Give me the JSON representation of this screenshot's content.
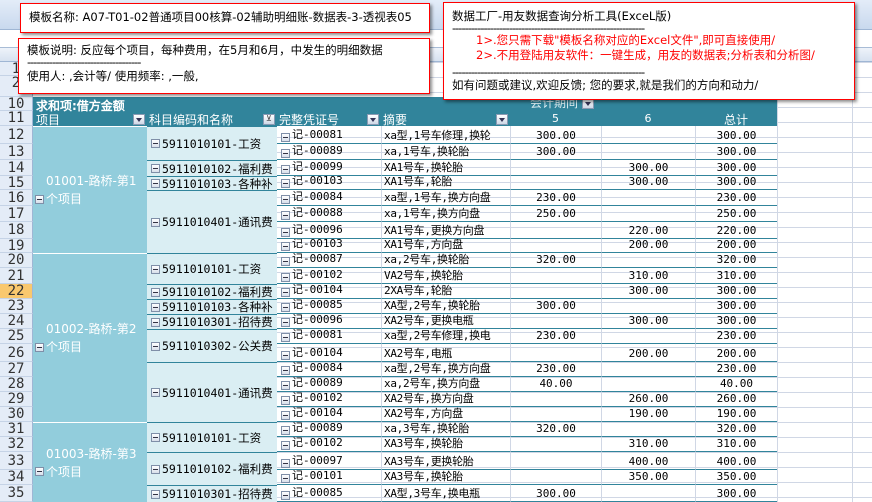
{
  "textboxes": {
    "template_name": "模板名称:   A07-T01-02普通项目00核算-02辅助明细账-数据表-3-透视表05",
    "description": "模板说明: 反应每个项目，每种费用，在5月和6月，中发生的明细数据",
    "separator_short": "------------------------------------",
    "usage": "使用人: ,会计等/      使用频率: ,一般,",
    "tool_title": "数据工厂-用友数据查询分析工具(ExceL版)",
    "separator_long": "-------------------------------------------------------------",
    "point1": "1>.您只需下载\"模板名称对应的Excel文件\",即可直接使用/",
    "point2": "2>.不用登陆用友软件：一键生成，用友的数据表;分析表和分析图/",
    "feedback": "如有问题或建议,欢迎反馈; 您的要求,就是我们的方向和动力/"
  },
  "pivot": {
    "data_field": "求和项:借方金额",
    "column_field": "会计期间",
    "headers": {
      "project": "项目",
      "subject": "科目编码和名称",
      "voucher": "完整凭证号",
      "summary": "摘要",
      "p5": "5",
      "p6": "6",
      "total": "总计"
    },
    "header_row_numbers": [
      "10",
      "11"
    ],
    "active_row": "22",
    "colors": {
      "header": "#31849b",
      "project_bg": "#92cddc",
      "subject_bg": "#daeef3",
      "active_row": "#f9c86e"
    },
    "projects": [
      {
        "name": "01001-路桥-第1个项目",
        "rows": 8
      },
      {
        "name": "01002-路桥-第2个项目",
        "rows": 11
      },
      {
        "name": "01003-路桥-第3个项目",
        "rows": 5
      }
    ],
    "subjects": [
      {
        "name": "5911010101-工资",
        "rows": 2
      },
      {
        "name": "5911010102-福利费",
        "rows": 1
      },
      {
        "name": "5911010103-各种补",
        "rows": 1
      },
      {
        "name": "5911010401-通讯费",
        "rows": 4
      },
      {
        "name": "5911010101-工资",
        "rows": 2
      },
      {
        "name": "5911010102-福利费",
        "rows": 1
      },
      {
        "name": "5911010103-各种补",
        "rows": 1
      },
      {
        "name": "5911010301-招待费",
        "rows": 1
      },
      {
        "name": "5911010302-公关费",
        "rows": 2
      },
      {
        "name": "5911010401-通讯费",
        "rows": 4
      },
      {
        "name": "5911010101-工资",
        "rows": 2
      },
      {
        "name": "5911010102-福利费",
        "rows": 2
      },
      {
        "name": "5911010301-招待费",
        "rows": 1
      }
    ],
    "rows": [
      {
        "n": "12",
        "voucher": "记-00081",
        "summary": "xa型,1号车修理,换轮",
        "p5": "300.00",
        "p6": "",
        "total": "300.00"
      },
      {
        "n": "13",
        "voucher": "记-00089",
        "summary": "xa,1号车,换轮胎",
        "p5": "300.00",
        "p6": "",
        "total": "300.00"
      },
      {
        "n": "14",
        "voucher": "记-00099",
        "summary": "XA1号车,换轮胎",
        "p5": "",
        "p6": "300.00",
        "total": "300.00"
      },
      {
        "n": "15",
        "voucher": "记-00103",
        "summary": "XA1号车,轮胎",
        "p5": "",
        "p6": "300.00",
        "total": "300.00"
      },
      {
        "n": "16",
        "voucher": "记-00084",
        "summary": "xa型,1号车,换方向盘",
        "p5": "230.00",
        "p6": "",
        "total": "230.00"
      },
      {
        "n": "17",
        "voucher": "记-00088",
        "summary": "xa,1号车,换方向盘",
        "p5": "250.00",
        "p6": "",
        "total": "250.00"
      },
      {
        "n": "18",
        "voucher": "记-00096",
        "summary": "XA1号车,更换方向盘",
        "p5": "",
        "p6": "220.00",
        "total": "220.00"
      },
      {
        "n": "19",
        "voucher": "记-00103",
        "summary": "XA1号车,方向盘",
        "p5": "",
        "p6": "200.00",
        "total": "200.00"
      },
      {
        "n": "20",
        "voucher": "记-00087",
        "summary": "xa,2号车,换轮胎",
        "p5": "320.00",
        "p6": "",
        "total": "320.00"
      },
      {
        "n": "21",
        "voucher": "记-00102",
        "summary": "VA2号车,换轮胎",
        "p5": "",
        "p6": "310.00",
        "total": "310.00"
      },
      {
        "n": "22",
        "voucher": "记-00104",
        "summary": "2XA号车,轮胎",
        "p5": "",
        "p6": "300.00",
        "total": "300.00"
      },
      {
        "n": "23",
        "voucher": "记-00085",
        "summary": "XA型,2号车,换轮胎",
        "p5": "300.00",
        "p6": "",
        "total": "300.00"
      },
      {
        "n": "24",
        "voucher": "记-00096",
        "summary": "XA2号车,更换电瓶",
        "p5": "",
        "p6": "300.00",
        "total": "300.00"
      },
      {
        "n": "25",
        "voucher": "记-00081",
        "summary": "xa型,2号车修理,换电",
        "p5": "230.00",
        "p6": "",
        "total": "230.00"
      },
      {
        "n": "26",
        "voucher": "记-00104",
        "summary": "XA2号车,电瓶",
        "p5": "",
        "p6": "200.00",
        "total": "200.00"
      },
      {
        "n": "27",
        "voucher": "记-00084",
        "summary": "xa型,2号车,换方向盘",
        "p5": "230.00",
        "p6": "",
        "total": "230.00"
      },
      {
        "n": "28",
        "voucher": "记-00089",
        "summary": "xa,2号车,换方向盘",
        "p5": "40.00",
        "p6": "",
        "total": "40.00"
      },
      {
        "n": "29",
        "voucher": "记-00102",
        "summary": "XA2号车,换方向盘",
        "p5": "",
        "p6": "260.00",
        "total": "260.00"
      },
      {
        "n": "30",
        "voucher": "记-00104",
        "summary": "XA2号车,方向盘",
        "p5": "",
        "p6": "190.00",
        "total": "190.00"
      },
      {
        "n": "31",
        "voucher": "记-00089",
        "summary": "xa,3号车,换轮胎",
        "p5": "320.00",
        "p6": "",
        "total": "320.00"
      },
      {
        "n": "32",
        "voucher": "记-00102",
        "summary": "XA3号车,换轮胎",
        "p5": "",
        "p6": "310.00",
        "total": "310.00"
      },
      {
        "n": "33",
        "voucher": "记-00097",
        "summary": "XA3号车,更换轮胎",
        "p5": "",
        "p6": "400.00",
        "total": "400.00"
      },
      {
        "n": "34",
        "voucher": "记-00101",
        "summary": "XA3号车,换轮胎",
        "p5": "",
        "p6": "350.00",
        "total": "350.00"
      },
      {
        "n": "35",
        "voucher": "记-00085",
        "summary": "XA型,3号车,换电瓶",
        "p5": "300.00",
        "p6": "",
        "total": "300.00"
      }
    ]
  }
}
